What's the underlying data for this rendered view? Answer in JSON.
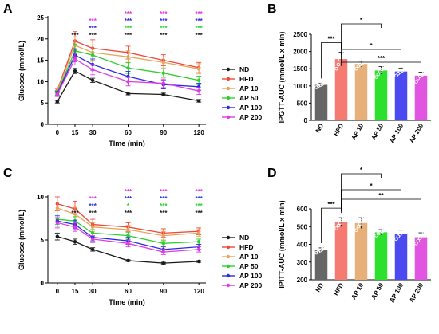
{
  "colors": {
    "ND": "#1a1a1a",
    "HFD": "#f0483c",
    "AP 10": "#e8a45a",
    "AP 50": "#2fcf2f",
    "AP 100": "#2a2ae6",
    "AP 200": "#e23ae2",
    "ND_bar": "#666666",
    "HFD_bar": "#f47a72",
    "AP 10_bar": "#e7b07a",
    "AP 50_bar": "#2ee02e",
    "AP 100_bar": "#4a4af0",
    "AP 200_bar": "#e056e0"
  },
  "chart_data": [
    {
      "panel": "A",
      "type": "line",
      "xlabel": "TIme  (min)",
      "ylabel": "Glucose (mmol/L)",
      "x": [
        0,
        15,
        30,
        60,
        90,
        120
      ],
      "xlim": [
        -8,
        126
      ],
      "ylim": [
        0,
        25
      ],
      "yticks": [
        0,
        5,
        10,
        15,
        20,
        25
      ],
      "series": [
        {
          "name": "ND",
          "values": [
            5.3,
            12.5,
            10.3,
            7.2,
            7.0,
            5.5
          ],
          "err": [
            0.3,
            0.6,
            0.5,
            0.3,
            0.3,
            0.3
          ]
        },
        {
          "name": "HFD",
          "values": [
            8.0,
            19.5,
            17.8,
            16.8,
            15.0,
            13.3
          ],
          "err": [
            0.5,
            2.2,
            2.0,
            1.5,
            1.3,
            1.2
          ]
        },
        {
          "name": "AP 10",
          "values": [
            7.8,
            18.5,
            16.8,
            15.8,
            14.5,
            13.0
          ],
          "err": [
            0.5,
            2.0,
            1.8,
            1.4,
            1.3,
            1.2
          ]
        },
        {
          "name": "AP 50",
          "values": [
            7.4,
            17.2,
            16.2,
            13.2,
            12.0,
            10.3
          ],
          "err": [
            0.5,
            1.6,
            1.4,
            1.3,
            1.0,
            1.0
          ]
        },
        {
          "name": "AP 100",
          "values": [
            7.2,
            16.2,
            14.0,
            11.2,
            9.3,
            8.8
          ],
          "err": [
            0.5,
            1.5,
            1.3,
            1.2,
            1.0,
            0.8
          ]
        },
        {
          "name": "AP 200",
          "values": [
            7.0,
            15.3,
            12.8,
            10.0,
            9.6,
            7.8
          ],
          "err": [
            0.5,
            1.4,
            1.2,
            1.0,
            1.0,
            0.8
          ]
        }
      ],
      "significance": [
        {
          "x": 15,
          "rows": [
            {
              "text": "***",
              "color": "#1a1a1a"
            }
          ]
        },
        {
          "x": 30,
          "rows": [
            {
              "text": "***",
              "color": "#e23ae2"
            },
            {
              "text": "***",
              "color": "#2a2ae6"
            },
            {
              "text": "***",
              "color": "#1a1a1a"
            }
          ]
        },
        {
          "x": 60,
          "rows": [
            {
              "text": "***",
              "color": "#e23ae2"
            },
            {
              "text": "***",
              "color": "#2a2ae6"
            },
            {
              "text": "***",
              "color": "#2fcf2f"
            },
            {
              "text": "***",
              "color": "#1a1a1a"
            }
          ]
        },
        {
          "x": 90,
          "rows": [
            {
              "text": "***",
              "color": "#e23ae2"
            },
            {
              "text": "***",
              "color": "#2a2ae6"
            },
            {
              "text": "***",
              "color": "#2fcf2f"
            },
            {
              "text": "***",
              "color": "#1a1a1a"
            }
          ]
        },
        {
          "x": 120,
          "rows": [
            {
              "text": "***",
              "color": "#e23ae2"
            },
            {
              "text": "***",
              "color": "#2a2ae6"
            },
            {
              "text": "***",
              "color": "#2fcf2f"
            },
            {
              "text": "***",
              "color": "#1a1a1a"
            }
          ]
        }
      ],
      "legend": [
        "ND",
        "HFD",
        "AP 10",
        "AP 50",
        "AP 100",
        "AP 200"
      ]
    },
    {
      "panel": "B",
      "type": "bar",
      "ylabel": "IPGTT-AUC  (mmol/L x min)",
      "categories": [
        "ND",
        "HFD",
        "AP 10",
        "AP 50",
        "AP 100",
        "AP 200"
      ],
      "values": [
        1030,
        1780,
        1640,
        1450,
        1420,
        1300
      ],
      "err": [
        50,
        200,
        80,
        110,
        100,
        100
      ],
      "ylim": [
        0,
        2500
      ],
      "yticks": [
        0,
        500,
        1000,
        1500,
        2000,
        2500
      ],
      "points": [
        [
          960,
          1000,
          1020,
          1050,
          1080,
          1100
        ],
        [
          1500,
          1620,
          1760,
          1850,
          2000,
          2150
        ],
        [
          1500,
          1580,
          1620,
          1660,
          1700,
          1780
        ],
        [
          1260,
          1340,
          1420,
          1480,
          1560,
          1620
        ],
        [
          1300,
          1360,
          1400,
          1440,
          1480,
          1560
        ],
        [
          1120,
          1220,
          1280,
          1320,
          1380,
          1450
        ]
      ],
      "brackets": [
        {
          "to": 1,
          "label": "***"
        },
        {
          "to": 3,
          "label": "*"
        },
        {
          "to": 4,
          "label": "*"
        },
        {
          "to": 5,
          "label": "***"
        }
      ],
      "nd_vs_hfd": "***"
    },
    {
      "panel": "C",
      "type": "line",
      "xlabel": "TIme  (min)",
      "ylabel": "Glucose (mmol/L)",
      "x": [
        0,
        15,
        30,
        60,
        90,
        120
      ],
      "xlim": [
        -8,
        126
      ],
      "ylim": [
        0,
        10
      ],
      "yticks": [
        0,
        5,
        10
      ],
      "series": [
        {
          "name": "ND",
          "values": [
            5.4,
            4.8,
            3.9,
            2.6,
            2.3,
            2.5
          ],
          "err": [
            0.4,
            0.3,
            0.2,
            0.1,
            0.1,
            0.1
          ]
        },
        {
          "name": "HFD",
          "values": [
            9.2,
            8.6,
            6.8,
            6.5,
            5.8,
            6.0
          ],
          "err": [
            0.8,
            0.9,
            0.6,
            0.5,
            0.5,
            0.4
          ]
        },
        {
          "name": "AP 10",
          "values": [
            8.7,
            8.0,
            6.5,
            6.2,
            5.5,
            5.8
          ],
          "err": [
            0.7,
            0.8,
            0.5,
            0.5,
            0.5,
            0.4
          ]
        },
        {
          "name": "AP 50",
          "values": [
            7.4,
            7.2,
            5.8,
            5.5,
            4.6,
            4.8
          ],
          "err": [
            0.6,
            0.5,
            0.4,
            0.4,
            0.3,
            0.3
          ]
        },
        {
          "name": "AP 100",
          "values": [
            7.2,
            6.8,
            5.3,
            4.9,
            3.9,
            4.2
          ],
          "err": [
            0.6,
            0.5,
            0.4,
            0.4,
            0.3,
            0.3
          ]
        },
        {
          "name": "AP 200",
          "values": [
            7.0,
            6.5,
            5.1,
            4.6,
            3.6,
            3.9
          ],
          "err": [
            0.6,
            0.5,
            0.4,
            0.4,
            0.3,
            0.3
          ]
        }
      ],
      "significance": [
        {
          "x": 15,
          "rows": [
            {
              "text": "***",
              "color": "#1a1a1a"
            }
          ]
        },
        {
          "x": 30,
          "rows": [
            {
              "text": "***",
              "color": "#e23ae2"
            },
            {
              "text": "***",
              "color": "#2a2ae6"
            },
            {
              "text": "***",
              "color": "#1a1a1a"
            }
          ]
        },
        {
          "x": 60,
          "rows": [
            {
              "text": "***",
              "color": "#e23ae2"
            },
            {
              "text": "***",
              "color": "#2a2ae6"
            },
            {
              "text": "*",
              "color": "#2fcf2f"
            },
            {
              "text": "***",
              "color": "#1a1a1a"
            }
          ]
        },
        {
          "x": 90,
          "rows": [
            {
              "text": "***",
              "color": "#e23ae2"
            },
            {
              "text": "***",
              "color": "#2a2ae6"
            },
            {
              "text": "***",
              "color": "#2fcf2f"
            },
            {
              "text": "***",
              "color": "#1a1a1a"
            }
          ]
        },
        {
          "x": 120,
          "rows": [
            {
              "text": "***",
              "color": "#e23ae2"
            },
            {
              "text": "***",
              "color": "#2a2ae6"
            },
            {
              "text": "***",
              "color": "#2fcf2f"
            },
            {
              "text": "***",
              "color": "#1a1a1a"
            }
          ]
        }
      ],
      "legend": [
        "ND",
        "HFD",
        "AP 10",
        "AP 50",
        "AP 100",
        "AP 200"
      ]
    },
    {
      "panel": "D",
      "type": "bar",
      "ylabel": "IPITT-AUC  (mmol/L x min)",
      "categories": [
        "ND",
        "HFD",
        "AP 10",
        "AP 50",
        "AP 100",
        "AP 200"
      ],
      "values": [
        370,
        525,
        520,
        468,
        460,
        440
      ],
      "err": [
        10,
        25,
        30,
        15,
        20,
        25
      ],
      "ylim": [
        200,
        600
      ],
      "yticks": [
        200,
        300,
        400,
        500,
        600
      ],
      "points": [
        [
          352,
          358,
          365,
          372,
          378,
          385
        ],
        [
          490,
          505,
          520,
          535,
          550,
          565
        ],
        [
          480,
          500,
          515,
          535,
          555,
          570
        ],
        [
          450,
          460,
          465,
          472,
          480,
          490
        ],
        [
          430,
          445,
          455,
          465,
          480,
          490
        ],
        [
          405,
          420,
          435,
          450,
          465,
          480
        ]
      ],
      "brackets": [
        {
          "to": 1,
          "label": "***"
        },
        {
          "to": 3,
          "label": "*"
        },
        {
          "to": 4,
          "label": "*"
        },
        {
          "to": 5,
          "label": "**"
        }
      ],
      "nd_vs_hfd": "***"
    }
  ]
}
